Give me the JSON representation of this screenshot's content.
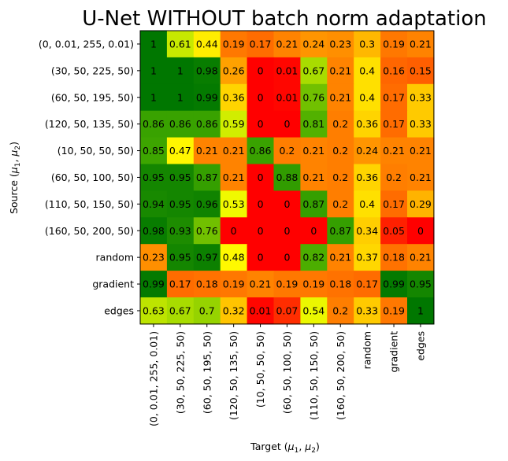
{
  "chart_data": {
    "type": "heatmap",
    "title": "U-Net WITHOUT batch norm adaptation",
    "xlabel": "Target (μ1, μ2)",
    "ylabel": "Source (μ1, μ2)",
    "rows": [
      "(0, 0.01, 255, 0.01)",
      "(30, 50, 225, 50)",
      "(60, 50, 195, 50)",
      "(120, 50, 135, 50)",
      "(10, 50, 50, 50)",
      "(60, 50, 100, 50)",
      "(110, 50, 150, 50)",
      "(160, 50, 200, 50)",
      "random",
      "gradient",
      "edges"
    ],
    "columns": [
      "(0, 0.01, 255, 0.01)",
      "(30, 50, 225, 50)",
      "(60, 50, 195, 50)",
      "(120, 50, 135, 50)",
      "(10, 50, 50, 50)",
      "(60, 50, 100, 50)",
      "(110, 50, 150, 50)",
      "(160, 50, 200, 50)",
      "random",
      "gradient",
      "edges"
    ],
    "values": [
      [
        1.0,
        0.61,
        0.44,
        0.19,
        0.17,
        0.21,
        0.24,
        0.23,
        0.3,
        0.19,
        0.21
      ],
      [
        1.0,
        1.0,
        0.98,
        0.26,
        0.0,
        0.01,
        0.67,
        0.21,
        0.4,
        0.16,
        0.15
      ],
      [
        1.0,
        1.0,
        0.99,
        0.36,
        0.0,
        0.01,
        0.76,
        0.21,
        0.4,
        0.17,
        0.33
      ],
      [
        0.86,
        0.86,
        0.86,
        0.59,
        0.0,
        0.0,
        0.81,
        0.2,
        0.36,
        0.17,
        0.33
      ],
      [
        0.85,
        0.47,
        0.21,
        0.21,
        0.86,
        0.2,
        0.21,
        0.2,
        0.24,
        0.21,
        0.21
      ],
      [
        0.95,
        0.95,
        0.87,
        0.21,
        0.0,
        0.88,
        0.21,
        0.2,
        0.36,
        0.2,
        0.21
      ],
      [
        0.94,
        0.95,
        0.96,
        0.53,
        0.0,
        0.0,
        0.87,
        0.2,
        0.4,
        0.17,
        0.29
      ],
      [
        0.98,
        0.93,
        0.76,
        0.0,
        0.0,
        0.0,
        0.0,
        0.87,
        0.34,
        0.05,
        0.0
      ],
      [
        0.23,
        0.95,
        0.97,
        0.48,
        0.0,
        0.0,
        0.82,
        0.21,
        0.37,
        0.18,
        0.21
      ],
      [
        0.99,
        0.17,
        0.18,
        0.19,
        0.21,
        0.19,
        0.19,
        0.18,
        0.17,
        0.99,
        0.95
      ],
      [
        0.63,
        0.67,
        0.7,
        0.32,
        0.01,
        0.07,
        0.54,
        0.2,
        0.33,
        0.19,
        1.0
      ]
    ],
    "value_range": [
      0,
      1
    ],
    "colormap": [
      "#ff0000",
      "#ff6a00",
      "#ffcc00",
      "#ffff00",
      "#aadd00",
      "#44aa00",
      "#007700"
    ],
    "grid": false
  }
}
